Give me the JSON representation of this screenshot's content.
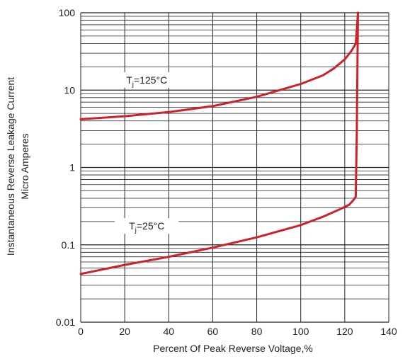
{
  "chart_data": {
    "type": "line",
    "xlabel": "Percent Of Peak Reverse Voltage,%",
    "ylabel_lines": [
      "Instantaneous Reverse Leakage Current",
      "Micro Amperes"
    ],
    "x_ticks": [
      "0",
      "20",
      "40",
      "60",
      "80",
      "100",
      "120",
      "140"
    ],
    "y_ticks": [
      "100",
      "10",
      "1",
      "0.1",
      "0.01"
    ],
    "xlim": [
      0,
      140
    ],
    "ylim": [
      0.01,
      100
    ],
    "y_scale": "log",
    "grid": true,
    "line_color": "#d0202a",
    "series": [
      {
        "label_main": "T",
        "label_sub": "j",
        "label_rest": "=125°C",
        "x": [
          0,
          20,
          40,
          60,
          80,
          100,
          110,
          115,
          120,
          123,
          125,
          125.5,
          126
        ],
        "y": [
          4.2,
          4.6,
          5.2,
          6.2,
          8.2,
          12,
          15.5,
          19,
          25,
          32,
          40,
          60,
          100
        ]
      },
      {
        "label_main": "T",
        "label_sub": "j",
        "label_rest": "=25°C",
        "x": [
          0,
          20,
          40,
          60,
          80,
          100,
          110,
          118,
          122,
          124,
          125,
          125.5,
          126
        ],
        "y": [
          0.042,
          0.055,
          0.07,
          0.092,
          0.125,
          0.18,
          0.23,
          0.29,
          0.33,
          0.38,
          0.42,
          3,
          100
        ]
      }
    ]
  }
}
